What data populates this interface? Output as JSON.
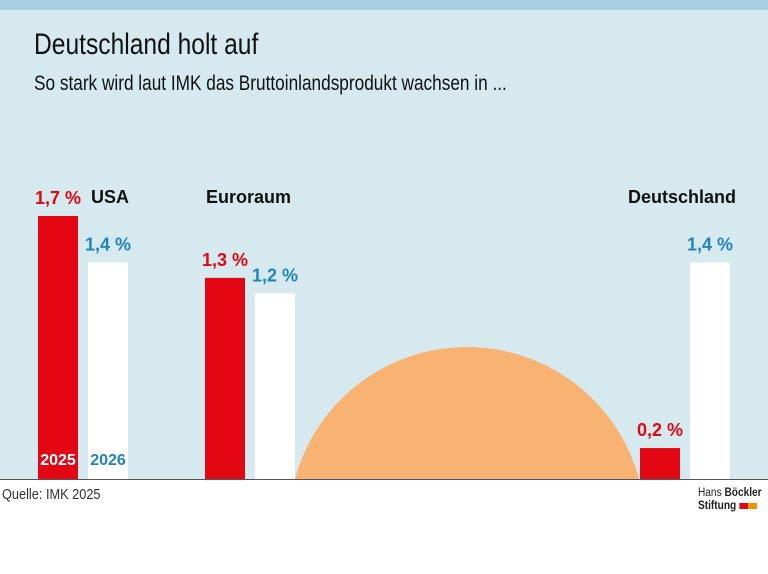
{
  "header": {
    "title": "Deutschland holt auf",
    "subtitle": "So stark wird laut IMK das Bruttoinlandsprodukt wachsen in ..."
  },
  "footer": {
    "source": "Quelle: IMK 2025",
    "logo_line1_light": "Hans",
    "logo_line1_bold": "Böckler",
    "logo_line2": "Stiftung"
  },
  "colors": {
    "background": "#d5e9ef",
    "top_strip": "#aacfe0",
    "bar_2025": "#e30613",
    "bar_2026": "#ffffff",
    "label_2025": "#e30613",
    "label_2026": "#1f86bb",
    "sun": "#f8b373"
  },
  "chart_data": {
    "type": "bar",
    "title": "Deutschland holt auf",
    "subtitle": "So stark wird laut IMK das Bruttoinlandsprodukt wachsen in ...",
    "categories": [
      "USA",
      "Euroraum",
      "Deutschland"
    ],
    "series": [
      {
        "name": "2025",
        "values": [
          1.7,
          1.3,
          0.2
        ],
        "labels": [
          "1,7 %",
          "1,3 %",
          "0,2 %"
        ]
      },
      {
        "name": "2026",
        "values": [
          1.4,
          1.2,
          1.4
        ],
        "labels": [
          "1,4 %",
          "1,2 %",
          "1,4 %"
        ]
      }
    ],
    "unit": "%",
    "ylim": [
      0,
      1.7
    ],
    "grid": false,
    "legend": "inside first bar group, at bar bottoms",
    "decoration": "orange half-sun rising from baseline between Euroraum and Deutschland"
  }
}
